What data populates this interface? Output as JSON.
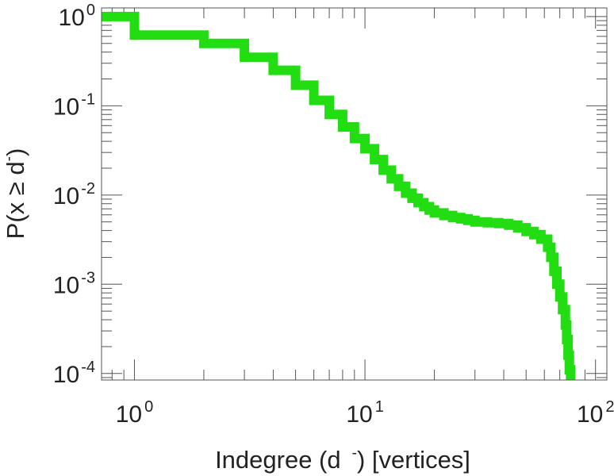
{
  "chart_data": {
    "type": "line",
    "title": "",
    "xlabel": {
      "pre": "Indegree (d",
      "sup": "-",
      "post": ") [vertices]"
    },
    "ylabel": {
      "pre": "P(x ≥ d",
      "sup": "-",
      "post": ")"
    },
    "xscale": "log",
    "yscale": "log",
    "xlim": [
      0.72,
      112
    ],
    "ylim": [
      8.45e-05,
      1.25
    ],
    "grid": false,
    "legend": "none",
    "xticks": [
      {
        "value": 1,
        "base": "10",
        "exp": "0"
      },
      {
        "value": 10,
        "base": "10",
        "exp": "1"
      },
      {
        "value": 100,
        "base": "10",
        "exp": "2"
      }
    ],
    "yticks": [
      {
        "value": 1,
        "base": "10",
        "exp": "0"
      },
      {
        "value": 0.1,
        "base": "10",
        "exp": "-1"
      },
      {
        "value": 0.01,
        "base": "10",
        "exp": "-2"
      },
      {
        "value": 0.001,
        "base": "10",
        "exp": "-3"
      },
      {
        "value": 0.0001,
        "base": "10",
        "exp": "-4"
      }
    ],
    "series": [
      {
        "color": "#22dd11",
        "style": "step",
        "x": [
          0.72,
          1,
          2,
          3,
          4,
          5,
          6,
          7,
          8,
          9,
          10,
          11,
          12,
          13,
          14,
          15,
          16,
          17,
          18,
          19,
          20,
          22,
          24,
          26,
          28,
          30,
          34,
          38,
          42,
          46,
          50,
          54,
          58,
          62,
          64,
          66,
          68,
          70,
          72,
          74,
          75,
          76,
          77,
          78
        ],
        "y": [
          1,
          0.62,
          0.5,
          0.35,
          0.25,
          0.17,
          0.115,
          0.08,
          0.058,
          0.043,
          0.033,
          0.025,
          0.019,
          0.0152,
          0.0125,
          0.0105,
          0.0092,
          0.0082,
          0.0074,
          0.0068,
          0.0063,
          0.0059,
          0.0056,
          0.0054,
          0.0052,
          0.005,
          0.0049,
          0.0048,
          0.0046,
          0.0043,
          0.0039,
          0.0036,
          0.0032,
          0.0026,
          0.002,
          0.0014,
          0.001,
          0.00072,
          0.00052,
          0.00035,
          0.00024,
          0.00016,
          0.00011,
          8.4e-05
        ]
      }
    ]
  }
}
